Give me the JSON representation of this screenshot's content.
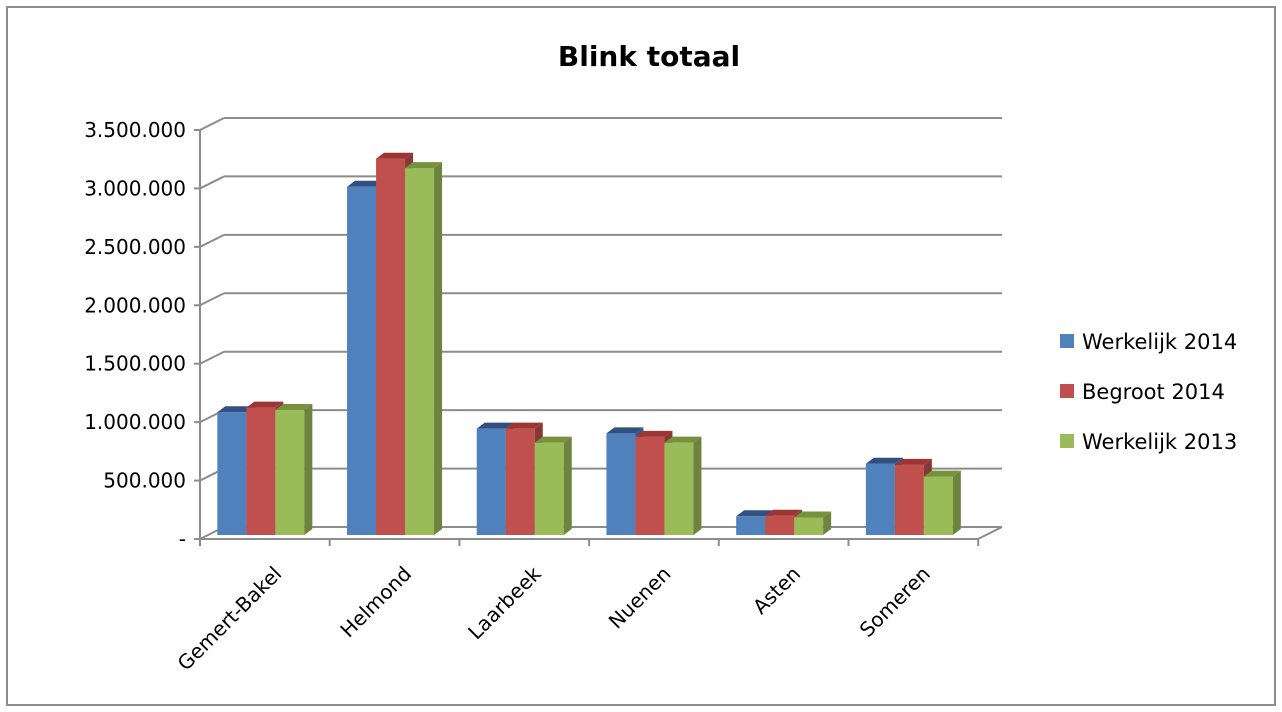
{
  "chart_data": {
    "type": "bar",
    "title": "Blink totaal",
    "categories": [
      "Gemert-Bakel",
      "Helmond",
      "Laarbeek",
      "Nuenen",
      "Asten",
      "Someren"
    ],
    "series": [
      {
        "name": "Werkelijk 2014",
        "values": [
          1050000,
          2980000,
          910000,
          870000,
          160000,
          610000
        ],
        "color": "#4F81BD",
        "side": "#375A85",
        "top": "#2F5080"
      },
      {
        "name": "Begroot 2014",
        "values": [
          1090000,
          3220000,
          910000,
          840000,
          165000,
          600000
        ],
        "color": "#C0504D",
        "side": "#873835",
        "top": "#9E3532"
      },
      {
        "name": "Werkelijk 2013",
        "values": [
          1070000,
          3140000,
          790000,
          790000,
          150000,
          500000
        ],
        "color": "#9BBB59",
        "side": "#6D843E",
        "top": "#76923C"
      }
    ],
    "yticks": [
      "-",
      "500.000",
      "1.000.000",
      "1.500.000",
      "2.000.000",
      "2.500.000",
      "3.000.000",
      "3.500.000"
    ],
    "ylim": [
      0,
      3500000
    ],
    "ystep": 500000,
    "xlabel": "",
    "ylabel": "",
    "grid": true,
    "legend_position": "right"
  }
}
